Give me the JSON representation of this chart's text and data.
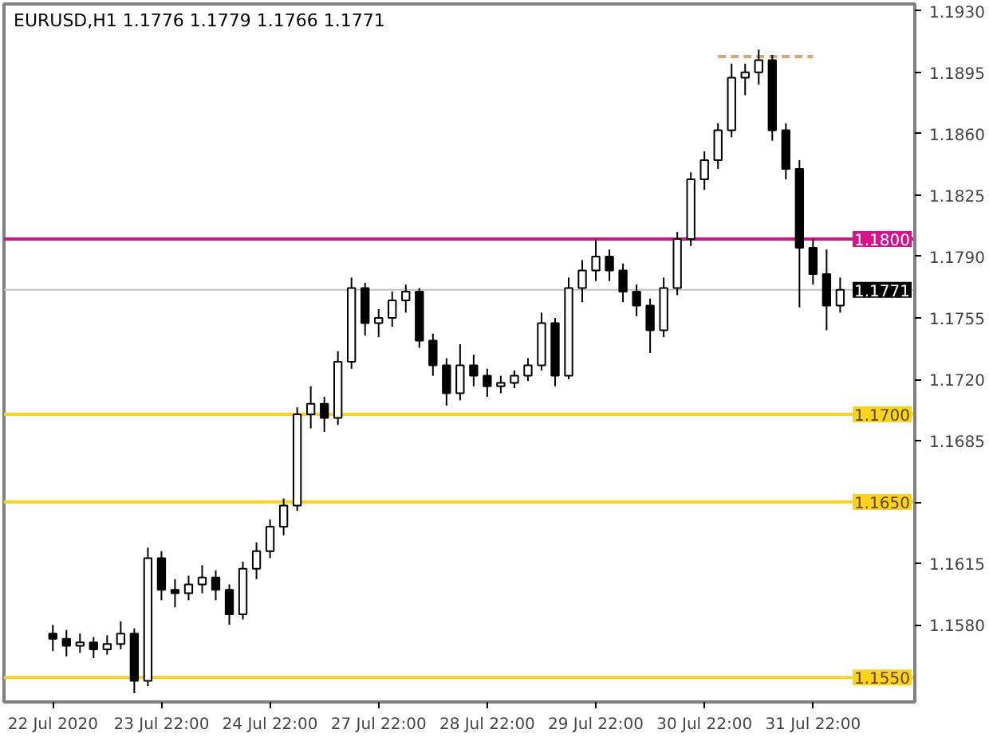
{
  "chart_data": {
    "type": "candlestick",
    "title": "EURUSD,H1  1.1776 1.1779 1.1766 1.1771",
    "categories": [
      "22 Jul 2020",
      null,
      null,
      null,
      null,
      null,
      null,
      null,
      "23 Jul 22:00",
      null,
      null,
      null,
      null,
      null,
      null,
      null,
      "24 Jul 22:00",
      null,
      null,
      null,
      null,
      null,
      null,
      null,
      "27 Jul 22:00",
      null,
      null,
      null,
      null,
      null,
      null,
      null,
      "28 Jul 22:00",
      null,
      null,
      null,
      null,
      null,
      null,
      null,
      "29 Jul 22:00",
      null,
      null,
      null,
      null,
      null,
      null,
      null,
      "30 Jul 22:00",
      null,
      null,
      null,
      null,
      null,
      null,
      null,
      "31 Jul 22:00",
      null,
      null
    ],
    "ohlc": [
      [
        1.1575,
        1.158,
        1.1565,
        1.1572
      ],
      [
        1.1572,
        1.1577,
        1.1562,
        1.1568
      ],
      [
        1.1568,
        1.1575,
        1.1564,
        1.157
      ],
      [
        1.157,
        1.1573,
        1.1561,
        1.1566
      ],
      [
        1.1566,
        1.1574,
        1.1563,
        1.1569
      ],
      [
        1.1569,
        1.1582,
        1.1566,
        1.1575
      ],
      [
        1.1575,
        1.1578,
        1.1541,
        1.1548
      ],
      [
        1.1548,
        1.1624,
        1.1545,
        1.1618
      ],
      [
        1.1618,
        1.1622,
        1.1594,
        1.16
      ],
      [
        1.16,
        1.1606,
        1.159,
        1.1598
      ],
      [
        1.1598,
        1.1608,
        1.1594,
        1.1603
      ],
      [
        1.1603,
        1.1614,
        1.1598,
        1.1607
      ],
      [
        1.1607,
        1.1611,
        1.1594,
        1.16
      ],
      [
        1.16,
        1.1603,
        1.158,
        1.1586
      ],
      [
        1.1586,
        1.1616,
        1.1583,
        1.1612
      ],
      [
        1.1612,
        1.1627,
        1.1606,
        1.1622
      ],
      [
        1.1622,
        1.164,
        1.1618,
        1.1636
      ],
      [
        1.1636,
        1.1652,
        1.1631,
        1.1648
      ],
      [
        1.1648,
        1.1704,
        1.1645,
        1.17
      ],
      [
        1.17,
        1.1716,
        1.1692,
        1.1706
      ],
      [
        1.1706,
        1.171,
        1.169,
        1.1698
      ],
      [
        1.1698,
        1.1736,
        1.1694,
        1.173
      ],
      [
        1.173,
        1.1778,
        1.1726,
        1.1772
      ],
      [
        1.1772,
        1.1775,
        1.1745,
        1.1752
      ],
      [
        1.1752,
        1.176,
        1.1744,
        1.1755
      ],
      [
        1.1755,
        1.177,
        1.175,
        1.1765
      ],
      [
        1.1765,
        1.1774,
        1.1758,
        1.177
      ],
      [
        1.177,
        1.1772,
        1.1738,
        1.1742
      ],
      [
        1.1742,
        1.1746,
        1.1722,
        1.1728
      ],
      [
        1.1728,
        1.1732,
        1.1705,
        1.1712
      ],
      [
        1.1712,
        1.174,
        1.1708,
        1.1728
      ],
      [
        1.1728,
        1.1734,
        1.1716,
        1.1722
      ],
      [
        1.1722,
        1.1726,
        1.171,
        1.1716
      ],
      [
        1.1716,
        1.1722,
        1.1712,
        1.1718
      ],
      [
        1.1718,
        1.1725,
        1.1715,
        1.1722
      ],
      [
        1.1722,
        1.1732,
        1.1719,
        1.1728
      ],
      [
        1.1728,
        1.1758,
        1.1725,
        1.1752
      ],
      [
        1.1752,
        1.1755,
        1.1716,
        1.1722
      ],
      [
        1.1722,
        1.1778,
        1.172,
        1.1772
      ],
      [
        1.1772,
        1.1788,
        1.1764,
        1.1782
      ],
      [
        1.1782,
        1.18,
        1.1776,
        1.179
      ],
      [
        1.179,
        1.1794,
        1.1776,
        1.1782
      ],
      [
        1.1782,
        1.1786,
        1.1764,
        1.177
      ],
      [
        1.177,
        1.1774,
        1.1756,
        1.1762
      ],
      [
        1.1762,
        1.1766,
        1.1735,
        1.1748
      ],
      [
        1.1748,
        1.1778,
        1.1744,
        1.1772
      ],
      [
        1.1772,
        1.1804,
        1.1768,
        1.18
      ],
      [
        1.18,
        1.1838,
        1.1796,
        1.1834
      ],
      [
        1.1834,
        1.185,
        1.1828,
        1.1845
      ],
      [
        1.1845,
        1.1866,
        1.184,
        1.1862
      ],
      [
        1.1862,
        1.19,
        1.1858,
        1.1892
      ],
      [
        1.1892,
        1.19,
        1.1882,
        1.1895
      ],
      [
        1.1895,
        1.1908,
        1.1888,
        1.1902
      ],
      [
        1.1902,
        1.1905,
        1.1856,
        1.1862
      ],
      [
        1.1862,
        1.1866,
        1.1834,
        1.184
      ],
      [
        1.184,
        1.1845,
        1.1761,
        1.1795
      ],
      [
        1.1795,
        1.18,
        1.1774,
        1.178
      ],
      [
        1.178,
        1.1794,
        1.1748,
        1.1762
      ],
      [
        1.1762,
        1.1778,
        1.1758,
        1.1771
      ]
    ],
    "series": [
      {
        "type": "line",
        "values": [
          null,
          null,
          null,
          null,
          null,
          null,
          null,
          null,
          null,
          null,
          null,
          null,
          null,
          null,
          null,
          null,
          null,
          null,
          null,
          null,
          null,
          null,
          null,
          null,
          null,
          null,
          null,
          null,
          null,
          null,
          null,
          null,
          null,
          null,
          null,
          null,
          null,
          null,
          null,
          null,
          null,
          null,
          null,
          null,
          null,
          null,
          null,
          null,
          null,
          1.1904,
          1.1904,
          1.1904,
          1.1904,
          1.1904,
          1.1904,
          1.1904,
          1.1904,
          null,
          null
        ],
        "color": "#d9a77a",
        "line_style": "dashed"
      }
    ],
    "ylim": [
      1.1536,
      1.1934
    ],
    "yticks": [
      {
        "value": 1.158,
        "label": "1.1580"
      },
      {
        "value": 1.1615,
        "label": "1.1615"
      },
      {
        "value": 1.165,
        "label": null
      },
      {
        "value": 1.1685,
        "label": "1.1685"
      },
      {
        "value": 1.172,
        "label": "1.1720"
      },
      {
        "value": 1.1755,
        "label": "1.1755"
      },
      {
        "value": 1.179,
        "label": "1.1790"
      },
      {
        "value": 1.1825,
        "label": "1.1825"
      },
      {
        "value": 1.186,
        "label": "1.1860"
      },
      {
        "value": 1.1895,
        "label": "1.1895"
      },
      {
        "value": 1.193,
        "label": "1.1930"
      }
    ],
    "ref_lines": [
      {
        "axis": "y",
        "value": 1.18,
        "label": "1.1800",
        "color": "#d4148a"
      },
      {
        "axis": "y",
        "value": 1.17,
        "label": "1.1700",
        "color": "#ffd21f"
      },
      {
        "axis": "y",
        "value": 1.165,
        "label": "1.1650",
        "color": "#ffd21f"
      },
      {
        "axis": "y",
        "value": 1.155,
        "label": "1.1550",
        "color": "#ffd21f"
      },
      {
        "axis": "y",
        "value": 1.1771,
        "label": "1.1771",
        "color": "#c0c0c0"
      }
    ],
    "grid": false
  }
}
